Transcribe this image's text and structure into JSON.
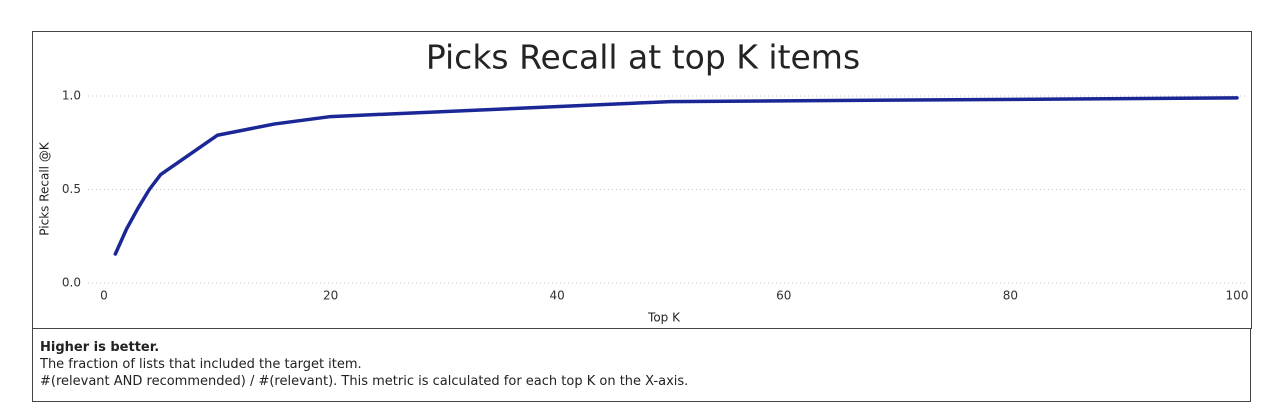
{
  "chart_data": {
    "type": "line",
    "title": "Picks Recall at top K items",
    "x_label": "Top K",
    "y_label": "Picks Recall @K",
    "x": [
      1,
      2,
      3,
      4,
      5,
      10,
      15,
      20,
      50,
      100
    ],
    "series": [
      {
        "name": "Picks Recall @K",
        "color": "#1b2796",
        "values": [
          0.155,
          0.29,
          0.4,
          0.5,
          0.58,
          0.79,
          0.85,
          0.89,
          0.97,
          0.99
        ]
      }
    ],
    "xlim": [
      0,
      100
    ],
    "xticks": [
      0,
      20,
      40,
      60,
      80,
      100
    ],
    "ylim": [
      0,
      1
    ],
    "yticks": [
      {
        "value": 0,
        "label": "0.0"
      },
      {
        "value": 0.5,
        "label": "0.5"
      },
      {
        "value": 1,
        "label": "1.0"
      }
    ],
    "grid": true
  },
  "footer": {
    "heading": "Higher is better.",
    "lines": [
      "The fraction of lists that included the target item.",
      "#(relevant AND recommended) / #(relevant).  This metric is calculated for each top K on the X-axis."
    ]
  }
}
